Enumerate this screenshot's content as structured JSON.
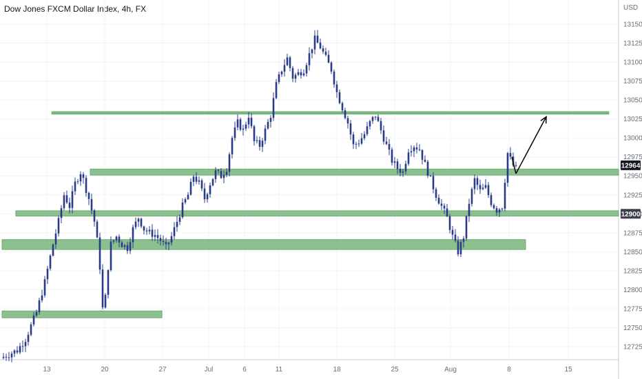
{
  "header": {
    "title": "Dow Jones FXCM Dollar Index, 4h, FX",
    "currency": "USD"
  },
  "colors": {
    "candle": "#2a3b86",
    "zone": "#8cc08e",
    "zone_border": "#6fa973",
    "line": "#7bb67f",
    "grid": "#f0f3fa",
    "axis_text": "#6a6d78",
    "price_badge": "#131722",
    "level_badge": "#3b3f4a",
    "arrow": "#000000"
  },
  "chart_data": {
    "type": "candlestick",
    "title": "Dow Jones FXCM Dollar Index, 4h, FX",
    "xlabel": "",
    "ylabel": "USD",
    "ylim": [
      12702,
      13172
    ],
    "grid": true,
    "y_ticks": [
      12725,
      12750,
      12775,
      12800,
      12825,
      12850,
      12875,
      12900,
      12925,
      12950,
      12975,
      13000,
      13025,
      13050,
      13075,
      13100,
      13125,
      13150
    ],
    "x_ticks": [
      "13",
      "20",
      "27",
      "Jul",
      "6",
      "11",
      "18",
      "25",
      "Aug",
      "8",
      "15"
    ],
    "last_price": 12964,
    "marked_level": 12900,
    "price_path": [
      [
        0,
        12710
      ],
      [
        6,
        12720
      ],
      [
        9,
        12735
      ],
      [
        13,
        12770
      ],
      [
        16,
        12810
      ],
      [
        19,
        12860
      ],
      [
        21,
        12890
      ],
      [
        23,
        12925
      ],
      [
        25,
        12910
      ],
      [
        27,
        12940
      ],
      [
        29,
        12955
      ],
      [
        30,
        12945
      ],
      [
        32,
        12920
      ],
      [
        34,
        12890
      ],
      [
        35,
        12865
      ],
      [
        36,
        12830
      ],
      [
        37,
        12775
      ],
      [
        38,
        12790
      ],
      [
        39,
        12830
      ],
      [
        40,
        12860
      ],
      [
        42,
        12870
      ],
      [
        44,
        12860
      ],
      [
        46,
        12855
      ],
      [
        48,
        12880
      ],
      [
        50,
        12895
      ],
      [
        52,
        12880
      ],
      [
        54,
        12875
      ],
      [
        56,
        12872
      ],
      [
        58,
        12865
      ],
      [
        60,
        12855
      ],
      [
        62,
        12870
      ],
      [
        64,
        12890
      ],
      [
        66,
        12910
      ],
      [
        68,
        12925
      ],
      [
        70,
        12950
      ],
      [
        72,
        12940
      ],
      [
        74,
        12920
      ],
      [
        76,
        12940
      ],
      [
        78,
        12955
      ],
      [
        80,
        12950
      ],
      [
        82,
        12960
      ],
      [
        84,
        13000
      ],
      [
        86,
        13020
      ],
      [
        88,
        13010
      ],
      [
        90,
        13030
      ],
      [
        92,
        12995
      ],
      [
        94,
        12990
      ],
      [
        96,
        13010
      ],
      [
        98,
        13030
      ],
      [
        100,
        13070
      ],
      [
        102,
        13090
      ],
      [
        104,
        13105
      ],
      [
        106,
        13080
      ],
      [
        108,
        13085
      ],
      [
        110,
        13090
      ],
      [
        112,
        13110
      ],
      [
        114,
        13130
      ],
      [
        116,
        13120
      ],
      [
        118,
        13105
      ],
      [
        120,
        13090
      ],
      [
        122,
        13060
      ],
      [
        124,
        13040
      ],
      [
        126,
        13020
      ],
      [
        128,
        12990
      ],
      [
        130,
        12995
      ],
      [
        132,
        13005
      ],
      [
        134,
        13020
      ],
      [
        136,
        13030
      ],
      [
        138,
        13010
      ],
      [
        140,
        12990
      ],
      [
        142,
        12970
      ],
      [
        144,
        12960
      ],
      [
        146,
        12955
      ],
      [
        148,
        12985
      ],
      [
        150,
        12990
      ],
      [
        152,
        12985
      ],
      [
        154,
        12965
      ],
      [
        156,
        12945
      ],
      [
        158,
        12925
      ],
      [
        160,
        12910
      ],
      [
        162,
        12895
      ],
      [
        164,
        12870
      ],
      [
        166,
        12850
      ],
      [
        168,
        12870
      ],
      [
        170,
        12915
      ],
      [
        172,
        12945
      ],
      [
        174,
        12930
      ],
      [
        176,
        12935
      ],
      [
        178,
        12915
      ],
      [
        180,
        12905
      ],
      [
        182,
        12910
      ],
      [
        184,
        12980
      ],
      [
        186,
        12964
      ]
    ],
    "support_zones": [
      {
        "low": 12951,
        "high": 12959,
        "from": 32,
        "to": 999
      },
      {
        "low": 12897,
        "high": 12904,
        "from": 5,
        "to": 999
      },
      {
        "low": 12853,
        "high": 12866,
        "from": 0,
        "to": 190
      },
      {
        "low": 12763,
        "high": 12772,
        "from": 0,
        "to": 58
      }
    ],
    "resistance_line": {
      "price": 13033,
      "from": 18,
      "to": 999
    },
    "projection_arrow": [
      [
        186,
        12953
      ],
      [
        197,
        13028
      ]
    ]
  }
}
